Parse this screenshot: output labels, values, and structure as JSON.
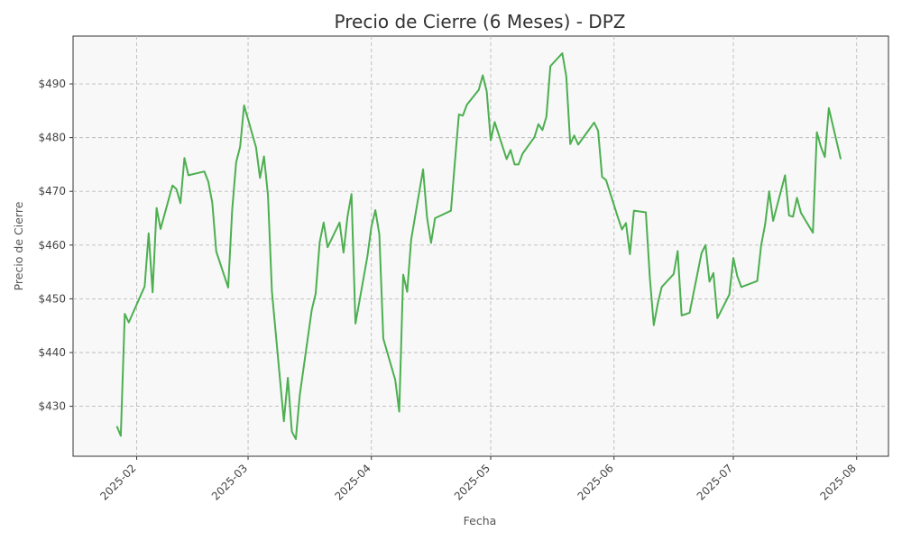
{
  "chart_data": {
    "type": "line",
    "title": "Precio de Cierre (6 Meses) - DPZ",
    "xlabel": "Fecha",
    "ylabel": "Precio de Cierre",
    "ylim": [
      420.7,
      498.9
    ],
    "xlim": [
      "2025-01-16",
      "2025-08-09"
    ],
    "grid": true,
    "line_color": "#4caf50",
    "plot_background": "#f8f8f8",
    "x_ticks": [
      {
        "date": "2025-02-01",
        "label": "2025-02"
      },
      {
        "date": "2025-03-01",
        "label": "2025-03"
      },
      {
        "date": "2025-04-01",
        "label": "2025-04"
      },
      {
        "date": "2025-05-01",
        "label": "2025-05"
      },
      {
        "date": "2025-06-01",
        "label": "2025-06"
      },
      {
        "date": "2025-07-01",
        "label": "2025-07"
      },
      {
        "date": "2025-08-01",
        "label": "2025-08"
      }
    ],
    "y_ticks": [
      {
        "value": 430,
        "label": "$430"
      },
      {
        "value": 440,
        "label": "$440"
      },
      {
        "value": 450,
        "label": "$450"
      },
      {
        "value": 460,
        "label": "$460"
      },
      {
        "value": 470,
        "label": "$470"
      },
      {
        "value": 480,
        "label": "$480"
      },
      {
        "value": 490,
        "label": "$490"
      }
    ],
    "series": [
      {
        "x": [
          "2025-01-27",
          "2025-01-28",
          "2025-01-29",
          "2025-01-30",
          "2025-02-03",
          "2025-02-04",
          "2025-02-05",
          "2025-02-06",
          "2025-02-07",
          "2025-02-10",
          "2025-02-11",
          "2025-02-12",
          "2025-02-13",
          "2025-02-14",
          "2025-02-18",
          "2025-02-19",
          "2025-02-20",
          "2025-02-21",
          "2025-02-24",
          "2025-02-25",
          "2025-02-26",
          "2025-02-27",
          "2025-02-28",
          "2025-03-03",
          "2025-03-04",
          "2025-03-05",
          "2025-03-06",
          "2025-03-07",
          "2025-03-10",
          "2025-03-11",
          "2025-03-12",
          "2025-03-13",
          "2025-03-14",
          "2025-03-17",
          "2025-03-18",
          "2025-03-19",
          "2025-03-20",
          "2025-03-21",
          "2025-03-24",
          "2025-03-25",
          "2025-03-26",
          "2025-03-27",
          "2025-03-28",
          "2025-03-31",
          "2025-04-01",
          "2025-04-02",
          "2025-04-03",
          "2025-04-04",
          "2025-04-07",
          "2025-04-08",
          "2025-04-09",
          "2025-04-10",
          "2025-04-11",
          "2025-04-14",
          "2025-04-15",
          "2025-04-16",
          "2025-04-17",
          "2025-04-21",
          "2025-04-22",
          "2025-04-23",
          "2025-04-24",
          "2025-04-25",
          "2025-04-28",
          "2025-04-29",
          "2025-04-30",
          "2025-05-01",
          "2025-05-02",
          "2025-05-05",
          "2025-05-06",
          "2025-05-07",
          "2025-05-08",
          "2025-05-09",
          "2025-05-12",
          "2025-05-13",
          "2025-05-14",
          "2025-05-15",
          "2025-05-16",
          "2025-05-19",
          "2025-05-20",
          "2025-05-21",
          "2025-05-22",
          "2025-05-23",
          "2025-05-27",
          "2025-05-28",
          "2025-05-29",
          "2025-05-30",
          "2025-06-02",
          "2025-06-03",
          "2025-06-04",
          "2025-06-05",
          "2025-06-06",
          "2025-06-09",
          "2025-06-10",
          "2025-06-11",
          "2025-06-12",
          "2025-06-13",
          "2025-06-16",
          "2025-06-17",
          "2025-06-18",
          "2025-06-20",
          "2025-06-23",
          "2025-06-24",
          "2025-06-25",
          "2025-06-26",
          "2025-06-27",
          "2025-06-30",
          "2025-07-01",
          "2025-07-02",
          "2025-07-03",
          "2025-07-07",
          "2025-07-08",
          "2025-07-09",
          "2025-07-10",
          "2025-07-11",
          "2025-07-14",
          "2025-07-15",
          "2025-07-16",
          "2025-07-17",
          "2025-07-18",
          "2025-07-21",
          "2025-07-22",
          "2025-07-23",
          "2025-07-24",
          "2025-07-25",
          "2025-07-28"
        ],
        "y": [
          426.3,
          424.5,
          447.2,
          445.6,
          452.3,
          462.2,
          451.2,
          466.9,
          463.0,
          471.1,
          470.4,
          467.8,
          476.2,
          473.0,
          473.7,
          471.8,
          467.9,
          458.8,
          452.1,
          466.5,
          475.4,
          478.3,
          486.0,
          478.2,
          472.5,
          476.5,
          469.3,
          451.3,
          427.2,
          435.3,
          425.3,
          423.9,
          432.1,
          447.9,
          451.0,
          460.5,
          464.2,
          459.6,
          464.2,
          458.6,
          465.3,
          469.5,
          445.4,
          457.9,
          463.4,
          466.5,
          462.0,
          442.6,
          434.9,
          429.0,
          454.5,
          451.3,
          461.0,
          474.1,
          465.1,
          460.4,
          465.0,
          466.4,
          475.5,
          484.3,
          484.1,
          486.1,
          488.9,
          491.6,
          488.6,
          479.5,
          482.9,
          476.0,
          477.7,
          475.0,
          475.0,
          477.0,
          480.1,
          482.5,
          481.4,
          483.9,
          493.3,
          495.7,
          491.4,
          478.8,
          480.4,
          478.7,
          482.8,
          481.3,
          472.7,
          472.1,
          465.1,
          462.9,
          464.1,
          458.3,
          466.4,
          466.1,
          454.0,
          445.1,
          449.1,
          452.2,
          454.6,
          458.9,
          446.9,
          447.4,
          458.5,
          460.0,
          453.2,
          454.8,
          446.4,
          450.8,
          457.6,
          454.2,
          452.2,
          453.3,
          460.0,
          463.9,
          470.0,
          464.5,
          473.0,
          465.5,
          465.3,
          468.8,
          466.0,
          462.3,
          481.0,
          478.3,
          476.4,
          485.5,
          476.0
        ]
      }
    ]
  }
}
